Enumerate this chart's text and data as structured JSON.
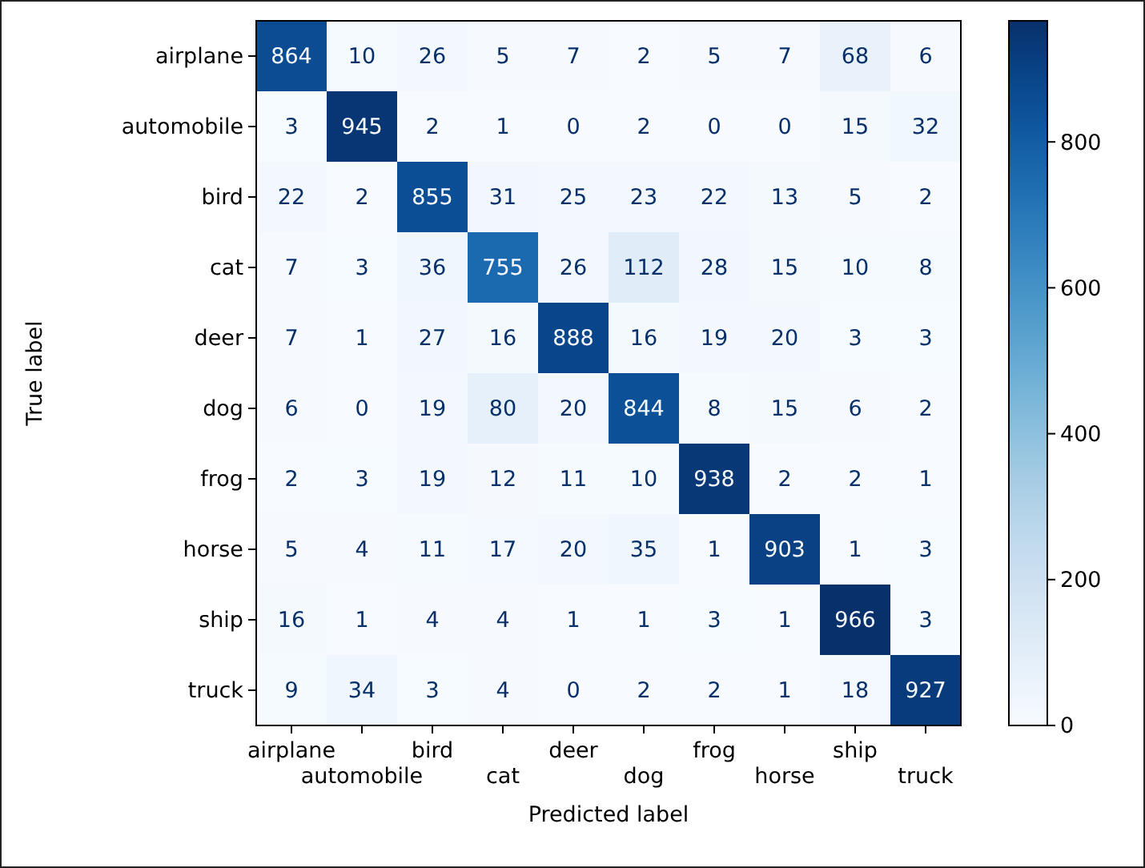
{
  "chart_data": {
    "type": "heatmap",
    "xlabel": "Predicted label",
    "ylabel": "True label",
    "categories": [
      "airplane",
      "automobile",
      "bird",
      "cat",
      "deer",
      "dog",
      "frog",
      "horse",
      "ship",
      "truck"
    ],
    "y_categories": [
      "airplane",
      "automobile",
      "bird",
      "cat",
      "deer",
      "dog",
      "frog",
      "horse",
      "ship",
      "truck"
    ],
    "cells": [
      [
        864,
        10,
        26,
        5,
        7,
        2,
        5,
        7,
        68,
        6
      ],
      [
        3,
        945,
        2,
        1,
        0,
        2,
        0,
        0,
        15,
        32
      ],
      [
        22,
        2,
        855,
        31,
        25,
        23,
        22,
        13,
        5,
        2
      ],
      [
        7,
        3,
        36,
        755,
        26,
        112,
        28,
        15,
        10,
        8
      ],
      [
        7,
        1,
        27,
        16,
        888,
        16,
        19,
        20,
        3,
        3
      ],
      [
        6,
        0,
        19,
        80,
        20,
        844,
        8,
        15,
        6,
        2
      ],
      [
        2,
        3,
        19,
        12,
        11,
        10,
        938,
        2,
        2,
        1
      ],
      [
        5,
        4,
        11,
        17,
        20,
        35,
        1,
        903,
        1,
        3
      ],
      [
        16,
        1,
        4,
        4,
        1,
        1,
        3,
        1,
        966,
        3
      ],
      [
        9,
        34,
        3,
        4,
        0,
        2,
        2,
        1,
        18,
        927
      ]
    ],
    "clim": [
      0,
      966
    ],
    "cticks": [
      0,
      200,
      400,
      600,
      800
    ],
    "data_labels": true
  }
}
